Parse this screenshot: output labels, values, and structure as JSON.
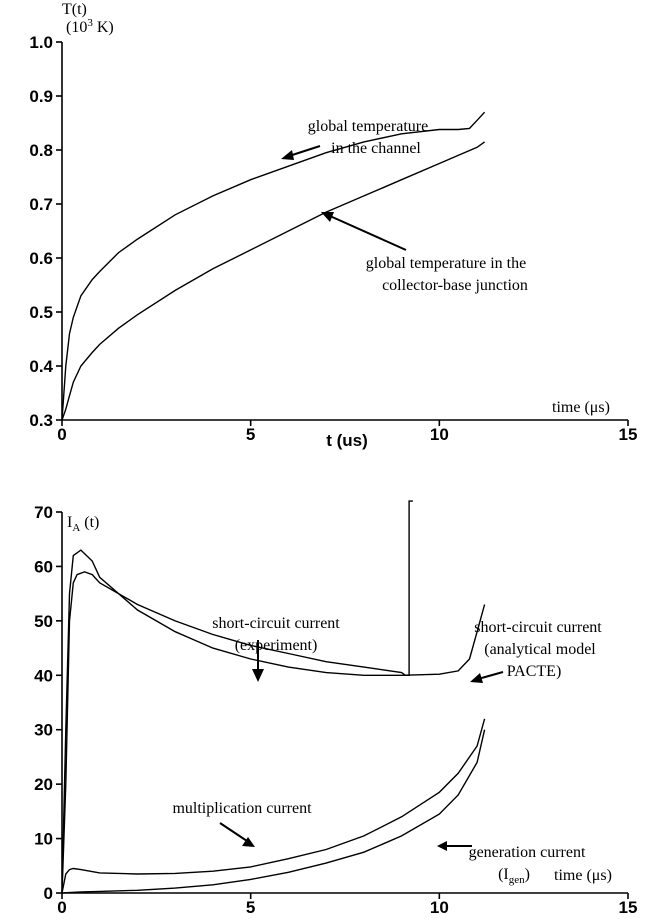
{
  "chart_data": [
    {
      "type": "line",
      "ylabel_line1": "T(t)",
      "ylabel_line2": "(10",
      "ylabel_sup": "3",
      "ylabel_tail": " K)",
      "xlabel": "t (us)",
      "time_label": "time (μs)",
      "xlim": [
        0,
        15
      ],
      "ylim": [
        0.3,
        1.0
      ],
      "xticks": [
        0,
        5,
        10,
        15
      ],
      "xtick_labels": [
        "0",
        "5",
        "10",
        "15"
      ],
      "yticks": [
        0.3,
        0.4,
        0.5,
        0.6,
        0.7,
        0.8,
        0.9,
        1.0
      ],
      "ytick_labels": [
        "0.3",
        "0.4",
        "0.5",
        "0.6",
        "0.7",
        "0.8",
        "0.9",
        "1.0"
      ],
      "series": [
        {
          "x": [
            0,
            0.1,
            0.2,
            0.3,
            0.5,
            0.8,
            1,
            1.5,
            2,
            3,
            4,
            5,
            6,
            7,
            8,
            9,
            10,
            10.5,
            10.8,
            11,
            11.2
          ],
          "y": [
            0.3,
            0.4,
            0.46,
            0.49,
            0.53,
            0.56,
            0.575,
            0.61,
            0.635,
            0.68,
            0.715,
            0.745,
            0.77,
            0.795,
            0.815,
            0.83,
            0.838,
            0.838,
            0.84,
            0.855,
            0.87
          ]
        },
        {
          "x": [
            0,
            0.1,
            0.2,
            0.3,
            0.5,
            0.8,
            1,
            1.5,
            2,
            3,
            4,
            5,
            6,
            7,
            8,
            9,
            10,
            10.5,
            11,
            11.2
          ],
          "y": [
            0.3,
            0.32,
            0.345,
            0.37,
            0.4,
            0.425,
            0.44,
            0.47,
            0.495,
            0.54,
            0.58,
            0.615,
            0.65,
            0.685,
            0.715,
            0.745,
            0.775,
            0.79,
            0.805,
            0.815
          ]
        }
      ],
      "annotations": [
        {
          "line1": "global temperature",
          "line2": "in the channel"
        },
        {
          "line1": "global temperature in  the",
          "line2": "collector-base junction"
        }
      ]
    },
    {
      "type": "line",
      "ylabel": "I",
      "ylabel_sub": "A",
      "ylabel_tail": " (t)",
      "time_label": "time (μs)",
      "xlim": [
        0,
        15
      ],
      "ylim": [
        0,
        70
      ],
      "xticks": [
        0,
        5,
        10,
        15
      ],
      "xtick_labels": [
        "0",
        "5",
        "10",
        "15"
      ],
      "yticks": [
        0,
        10,
        20,
        30,
        40,
        50,
        60,
        70
      ],
      "ytick_labels": [
        "0",
        "10",
        "20",
        "30",
        "40",
        "50",
        "60",
        "70"
      ],
      "series": [
        {
          "x": [
            0,
            0.1,
            0.2,
            0.3,
            0.4,
            0.6,
            0.8,
            1,
            2,
            3,
            4,
            5,
            6,
            7,
            8,
            8.5,
            9,
            9.1,
            9.2,
            9.2,
            9.25,
            9.3
          ],
          "y": [
            0,
            20,
            50,
            57,
            58.5,
            59,
            58.5,
            57,
            53,
            50,
            47.5,
            45.5,
            44,
            42.5,
            41.5,
            41,
            40.5,
            40,
            40,
            72,
            72,
            72
          ]
        },
        {
          "x": [
            0,
            0.1,
            0.2,
            0.3,
            0.5,
            0.8,
            1,
            2,
            3,
            4,
            5,
            6,
            7,
            8,
            9,
            10,
            10.5,
            10.8,
            11,
            11.2
          ],
          "y": [
            0,
            30,
            55,
            62,
            63,
            61,
            58,
            52,
            48,
            45,
            43,
            41.5,
            40.5,
            40,
            40,
            40.2,
            40.8,
            43,
            48,
            53
          ]
        },
        {
          "x": [
            0,
            0.1,
            0.2,
            0.3,
            0.5,
            1,
            2,
            3,
            4,
            5,
            6,
            7,
            8,
            9,
            10,
            10.5,
            11,
            11.2
          ],
          "y": [
            0,
            3.5,
            4.3,
            4.5,
            4.3,
            3.7,
            3.5,
            3.6,
            4,
            4.8,
            6.3,
            8,
            10.5,
            14,
            18.5,
            22,
            27,
            32
          ]
        },
        {
          "x": [
            0,
            0.5,
            1,
            2,
            3,
            4,
            5,
            6,
            7,
            8,
            9,
            10,
            10.5,
            11,
            11.2
          ],
          "y": [
            0,
            0.2,
            0.3,
            0.5,
            0.9,
            1.5,
            2.5,
            3.8,
            5.5,
            7.5,
            10.5,
            14.5,
            18,
            24,
            30
          ]
        }
      ],
      "annotations": [
        {
          "line1": "short-circuit current",
          "line2": "(experiment)"
        },
        {
          "line1": "short-circuit current",
          "line2": "(analytical model",
          "line3": "PACTE)"
        },
        {
          "line1": "multiplication current"
        },
        {
          "line1": "generation current",
          "line2_main": "(I",
          "line2_sub": "gen",
          "line2_tail": ")"
        }
      ]
    }
  ]
}
